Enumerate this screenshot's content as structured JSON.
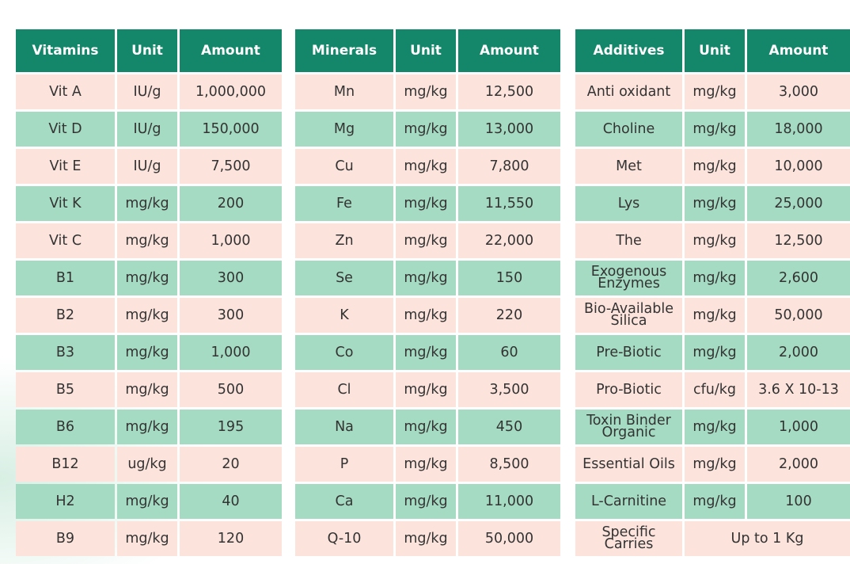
{
  "tables": [
    {
      "columns": [
        "Vitamins",
        "Unit",
        "Amount"
      ],
      "rows": [
        [
          "Vit A",
          "IU/g",
          "1,000,000"
        ],
        [
          "Vit D",
          "IU/g",
          "150,000"
        ],
        [
          "Vit E",
          "IU/g",
          "7,500"
        ],
        [
          "Vit K",
          "mg/kg",
          "200"
        ],
        [
          "Vit C",
          "mg/kg",
          "1,000"
        ],
        [
          "B1",
          "mg/kg",
          "300"
        ],
        [
          "B2",
          "mg/kg",
          "300"
        ],
        [
          "B3",
          "mg/kg",
          "1,000"
        ],
        [
          "B5",
          "mg/kg",
          "500"
        ],
        [
          "B6",
          "mg/kg",
          "195"
        ],
        [
          "B12",
          "ug/kg",
          "20"
        ],
        [
          "H2",
          "mg/kg",
          "40"
        ],
        [
          "B9",
          "mg/kg",
          "120"
        ]
      ]
    },
    {
      "columns": [
        "Minerals",
        "Unit",
        "Amount"
      ],
      "rows": [
        [
          "Mn",
          "mg/kg",
          "12,500"
        ],
        [
          "Mg",
          "mg/kg",
          "13,000"
        ],
        [
          "Cu",
          "mg/kg",
          "7,800"
        ],
        [
          "Fe",
          "mg/kg",
          "11,550"
        ],
        [
          "Zn",
          "mg/kg",
          "22,000"
        ],
        [
          "Se",
          "mg/kg",
          "150"
        ],
        [
          "K",
          "mg/kg",
          "220"
        ],
        [
          "Co",
          "mg/kg",
          "60"
        ],
        [
          "Cl",
          "mg/kg",
          "3,500"
        ],
        [
          "Na",
          "mg/kg",
          "450"
        ],
        [
          "P",
          "mg/kg",
          "8,500"
        ],
        [
          "Ca",
          "mg/kg",
          "11,000"
        ],
        [
          "Q-10",
          "mg/kg",
          "50,000"
        ]
      ]
    },
    {
      "columns": [
        "Additives",
        "Unit",
        "Amount"
      ],
      "rows": [
        [
          "Anti oxidant",
          "mg/kg",
          "3,000"
        ],
        [
          "Choline",
          "mg/kg",
          "18,000"
        ],
        [
          "Met",
          "mg/kg",
          "10,000"
        ],
        [
          "Lys",
          "mg/kg",
          "25,000"
        ],
        [
          "The",
          "mg/kg",
          "12,500"
        ],
        [
          "Exogenous Enzymes",
          "mg/kg",
          "2,600"
        ],
        [
          "Bio-Available Silica",
          "mg/kg",
          "50,000"
        ],
        [
          "Pre-Biotic",
          "mg/kg",
          "2,000"
        ],
        [
          "Pro-Biotic",
          "cfu/kg",
          "3.6 X 10-13"
        ],
        [
          "Toxin Binder Organic",
          "mg/kg",
          "1,000"
        ],
        [
          "Essential Oils",
          "mg/kg",
          "2,000"
        ],
        [
          "L-Carnitine",
          "mg/kg",
          "100"
        ],
        [
          "Specific Carries",
          "Up to 1 Kg"
        ]
      ]
    }
  ]
}
